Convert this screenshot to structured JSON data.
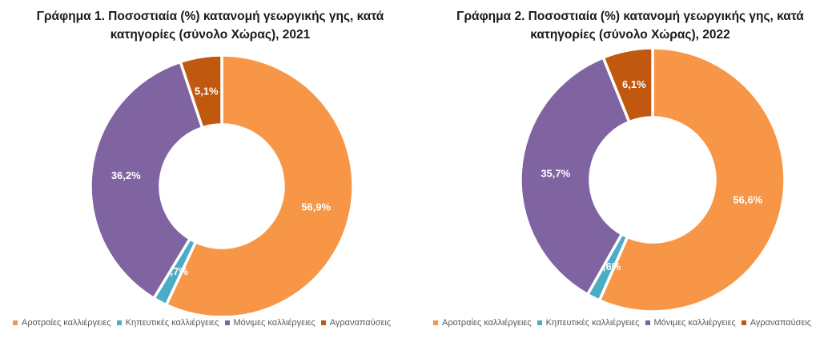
{
  "chart_data": [
    {
      "type": "pie",
      "title_line1": "Γράφημα 1. Ποσοστιαία (%) κατανομή γεωργικής γης, κατά",
      "title_line2": "κατηγορίες (σύνολο Χώρας), 2021",
      "categories": [
        "Αροτραίες καλλιέργειες",
        "Κηπευτικές καλλιέργειες",
        "Μόνιμες καλλιέργειες",
        "Αγραναπαύσεις"
      ],
      "values": [
        56.9,
        1.7,
        36.2,
        5.1
      ],
      "data_labels": [
        "56,9%",
        "1,7%",
        "36,2%",
        "5,1%"
      ],
      "colors": [
        "#F79646",
        "#4BACC6",
        "#8064A2",
        "#C0580F"
      ],
      "donut": true,
      "legend_position": "bottom"
    },
    {
      "type": "pie",
      "title_line1": "Γράφημα 2. Ποσοστιαία (%) κατανομή γεωργικής γης, κατά",
      "title_line2": "κατηγορίες (σύνολο Χώρας), 2022",
      "categories": [
        "Αροτραίες καλλιέργειες",
        "Κηπευτικές καλλιέργειες",
        "Μόνιμες καλλιέργειες",
        "Αγραναπαύσεις"
      ],
      "values": [
        56.6,
        1.6,
        35.7,
        6.1
      ],
      "data_labels": [
        "56,6%",
        "1,6%",
        "35,7%",
        "6,1%"
      ],
      "colors": [
        "#F79646",
        "#4BACC6",
        "#8064A2",
        "#C0580F"
      ],
      "donut": true,
      "legend_position": "bottom"
    }
  ]
}
